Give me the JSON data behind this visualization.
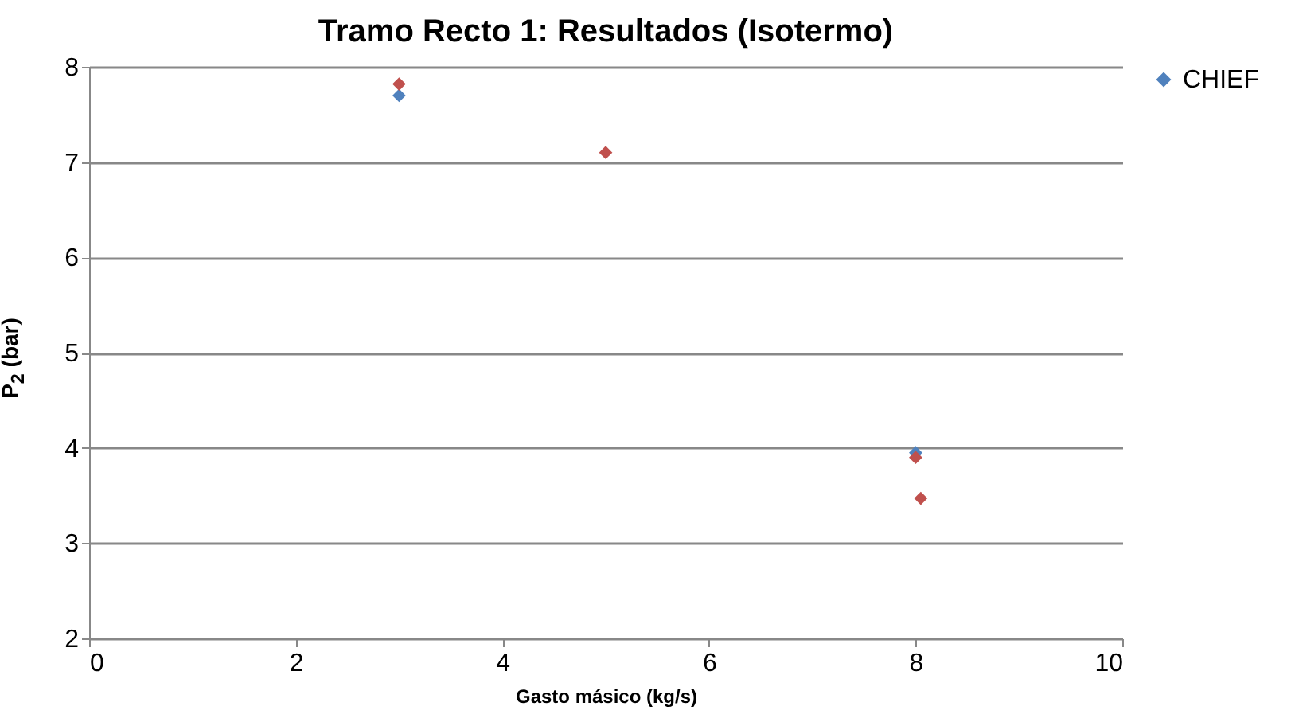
{
  "chart_data": {
    "type": "scatter",
    "title": "Tramo Recto 1: Resultados (Isotermo)",
    "xlabel": "Gasto másico (kg/s)",
    "ylabel": "P$_{2}$ (bar)",
    "series": [
      {
        "name": "CHIEF",
        "color": "#4f81bd",
        "x": [
          3,
          8
        ],
        "values": [
          7.7,
          3.95
        ]
      },
      {
        "color": "#c0504d",
        "x": [
          3,
          5,
          8,
          8.05
        ],
        "values": [
          7.82,
          7.1,
          3.9,
          3.47
        ]
      }
    ],
    "xlim": [
      0,
      10
    ],
    "xticks": [
      0,
      2,
      4,
      6,
      8,
      10
    ],
    "ylim": [
      2,
      8
    ],
    "yticks": [
      2,
      3,
      4,
      5,
      6,
      7,
      8
    ],
    "grid": "y",
    "legend": "right",
    "marker": "diamond"
  }
}
